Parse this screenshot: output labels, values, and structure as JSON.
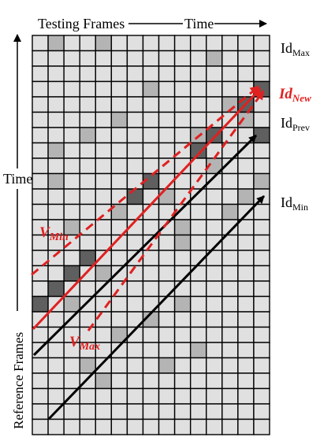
{
  "header": {
    "testing_frames": "Testing Frames",
    "time": "Time"
  },
  "left": {
    "time": "Time",
    "reference_frames": "Reference Frames"
  },
  "labels": {
    "id_max": {
      "base": "Id",
      "sub": "Max"
    },
    "id_new": {
      "base": "Id",
      "sub": "New"
    },
    "id_prev": {
      "base": "Id",
      "sub": "Prev"
    },
    "id_min": {
      "base": "Id",
      "sub": "Min"
    },
    "v_min": {
      "base": "V",
      "sub": "Min"
    },
    "v_max": {
      "base": "V",
      "sub": "Max"
    }
  },
  "grid": {
    "columns": 15,
    "rows": 26
  },
  "colors": {
    "red": "#e02020",
    "black": "#000000",
    "cell_light": "#e0e0e0",
    "cell_mid": "#b4b4b4",
    "cell_dark": "#5f5f5f"
  }
}
